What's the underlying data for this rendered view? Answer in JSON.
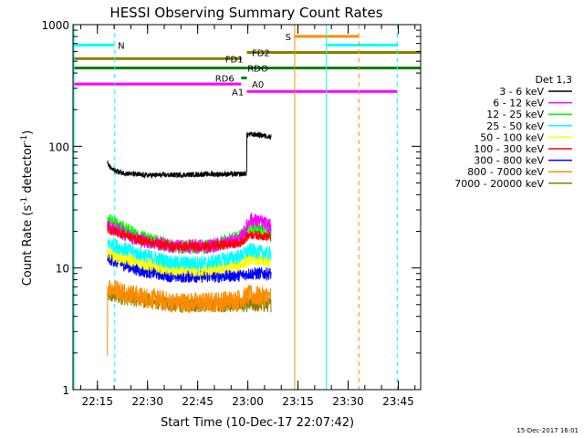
{
  "chart_data": {
    "type": "line",
    "title": "HESSI Observing Summary Count Rates",
    "xlabel": "Start Time (10-Dec-17 22:07:42)",
    "ylabel_main": "Count Rate (s",
    "ylabel_sup1": "-1",
    "ylabel_mid": " detector",
    "ylabel_sup2": "-1",
    "ylabel_end": ")",
    "x_unit": "minutes after 22:07:42",
    "xlim": [
      0,
      104
    ],
    "ylim": [
      1,
      1000
    ],
    "yscale": "log",
    "xticks": [
      {
        "label": "22:15",
        "value": 7.3
      },
      {
        "label": "22:30",
        "value": 22.3
      },
      {
        "label": "22:45",
        "value": 37.3
      },
      {
        "label": "23:00",
        "value": 52.3
      },
      {
        "label": "23:15",
        "value": 67.3
      },
      {
        "label": "23:30",
        "value": 82.3
      },
      {
        "label": "23:45",
        "value": 97.3
      }
    ],
    "yticks": [
      {
        "label": "1",
        "value": 1
      },
      {
        "label": "10",
        "value": 10
      },
      {
        "label": "100",
        "value": 100
      },
      {
        "label": "1000",
        "value": 1000
      }
    ],
    "legend": {
      "title": "Det 1,3",
      "placement": "right",
      "entries": [
        {
          "label": "3 - 6 keV",
          "color": "#000000"
        },
        {
          "label": "6 - 12 keV",
          "color": "#ff00ff"
        },
        {
          "label": "12 - 25 keV",
          "color": "#00ff00"
        },
        {
          "label": "25 - 50 keV",
          "color": "#00ffff"
        },
        {
          "label": "50 - 100 keV",
          "color": "#ffff00"
        },
        {
          "label": "100 - 300 keV",
          "color": "#ff0000"
        },
        {
          "label": "300 - 800 keV",
          "color": "#0000ff"
        },
        {
          "label": "800 - 7000 keV",
          "color": "#ff8c00"
        },
        {
          "label": "7000 - 20000 keV",
          "color": "#8b7d00"
        }
      ]
    },
    "series": [
      {
        "name": "3 - 6 keV",
        "color": "#000000",
        "start": 10.3,
        "end": 59.3,
        "levels": [
          [
            10.3,
            72
          ],
          [
            11.5,
            65
          ],
          [
            14,
            61
          ],
          [
            20,
            58
          ],
          [
            30,
            58
          ],
          [
            40,
            59
          ],
          [
            50,
            59
          ],
          [
            52,
            60
          ],
          [
            52.2,
            125
          ],
          [
            55,
            125
          ],
          [
            59,
            120
          ]
        ],
        "noise": 0.05
      },
      {
        "name": "6 - 12 keV",
        "color": "#ff00ff",
        "start": 10.3,
        "end": 59.3,
        "levels": [
          [
            10.3,
            22
          ],
          [
            20,
            17
          ],
          [
            30,
            15
          ],
          [
            40,
            15
          ],
          [
            50,
            17
          ],
          [
            53,
            25
          ],
          [
            56,
            24
          ],
          [
            59,
            22
          ]
        ],
        "noise": 0.14
      },
      {
        "name": "12 - 25 keV",
        "color": "#00ff00",
        "start": 10.3,
        "end": 59.3,
        "levels": [
          [
            10.3,
            25
          ],
          [
            20,
            18
          ],
          [
            30,
            15
          ],
          [
            40,
            15
          ],
          [
            50,
            18
          ],
          [
            53,
            22
          ],
          [
            56,
            21
          ],
          [
            59,
            20
          ]
        ],
        "noise": 0.14
      },
      {
        "name": "25 - 50 keV",
        "color": "#00ffff",
        "start": 10.3,
        "end": 59.3,
        "levels": [
          [
            10.3,
            16
          ],
          [
            20,
            13
          ],
          [
            30,
            11
          ],
          [
            40,
            11
          ],
          [
            50,
            12.5
          ],
          [
            53,
            14
          ],
          [
            56,
            13.5
          ],
          [
            59,
            13
          ]
        ],
        "noise": 0.14
      },
      {
        "name": "50 - 100 keV",
        "color": "#ffff00",
        "start": 10.3,
        "end": 59.3,
        "levels": [
          [
            10.3,
            13
          ],
          [
            20,
            11
          ],
          [
            30,
            9.5
          ],
          [
            40,
            9.5
          ],
          [
            50,
            10.5
          ],
          [
            53,
            12
          ],
          [
            56,
            11.5
          ],
          [
            59,
            11
          ]
        ],
        "noise": 0.12
      },
      {
        "name": "100 - 300 keV",
        "color": "#ff0000",
        "start": 10.3,
        "end": 59.3,
        "levels": [
          [
            10.3,
            21
          ],
          [
            20,
            17
          ],
          [
            30,
            15
          ],
          [
            40,
            15
          ],
          [
            50,
            16
          ],
          [
            53,
            19
          ],
          [
            56,
            18.5
          ],
          [
            59,
            18
          ]
        ],
        "noise": 0.09
      },
      {
        "name": "300 - 800 keV",
        "color": "#0000ff",
        "start": 10.3,
        "end": 59.3,
        "levels": [
          [
            10.3,
            12
          ],
          [
            20,
            9.5
          ],
          [
            30,
            8.5
          ],
          [
            40,
            8.5
          ],
          [
            50,
            8.7
          ],
          [
            53,
            9
          ],
          [
            56,
            9
          ],
          [
            59,
            9
          ]
        ],
        "noise": 0.12
      },
      {
        "name": "800 - 7000 keV",
        "color": "#ff8c00",
        "start": 10.3,
        "end": 59.3,
        "levels": [
          [
            10.3,
            7
          ],
          [
            20,
            5.8
          ],
          [
            30,
            5.2
          ],
          [
            40,
            5.2
          ],
          [
            50,
            5.5
          ],
          [
            53,
            6
          ],
          [
            56,
            5.8
          ],
          [
            59,
            5.8
          ]
        ],
        "noise": 0.2
      },
      {
        "name": "7000 - 20000 keV",
        "color": "#8b7d00",
        "start": 10.3,
        "end": 59.3,
        "levels": [
          [
            10.3,
            6
          ],
          [
            30,
            5
          ],
          [
            59,
            5
          ]
        ],
        "noise": 0.15
      }
    ],
    "vertical_lines": [
      {
        "x": 0.3,
        "color": "#00ffff",
        "dashed": false
      },
      {
        "x": 12.5,
        "color": "#00ffff",
        "dashed": true
      },
      {
        "x": 66.3,
        "color": "#ff8c00",
        "dashed": false
      },
      {
        "x": 75.8,
        "color": "#00ffff",
        "dashed": false
      },
      {
        "x": 85.5,
        "color": "#ff8c00",
        "dashed": true
      },
      {
        "x": 97.0,
        "color": "#00ffff",
        "dashed": true
      }
    ],
    "flag_bars": [
      {
        "label": "N",
        "color": "#00ffff",
        "y": 680,
        "segments": [
          [
            0,
            12.3
          ],
          [
            76,
            97.2
          ]
        ],
        "label_x": 13.4
      },
      {
        "label": "S",
        "color": "#ff8c00",
        "y": 800,
        "segments": [
          [
            66.3,
            85.5
          ]
        ],
        "label_x": 63.5
      },
      {
        "label": "FD1",
        "color": "#8b7d00",
        "y": 525,
        "segments": [
          [
            0,
            50.5
          ]
        ],
        "label_x": 45.5
      },
      {
        "label": "FD2",
        "color": "#8b7d00",
        "y": 590,
        "segments": [
          [
            52,
            104
          ]
        ],
        "label_x": 53.5
      },
      {
        "label": "RDO",
        "color": "#008000",
        "y": 440,
        "segments": [
          [
            0,
            104
          ]
        ],
        "label_x": 52.2
      },
      {
        "label": "RD6",
        "color": "#008000",
        "y": 365,
        "segments": [
          [
            50.3,
            52
          ]
        ],
        "label_x": 42.5
      },
      {
        "label": "A0",
        "color": "#ff00ff",
        "y": 325,
        "segments": [
          [
            0,
            50.3
          ]
        ],
        "label_x": 53.5
      },
      {
        "label": "A1",
        "color": "#ff00ff",
        "y": 282,
        "segments": [
          [
            52,
            97
          ]
        ],
        "label_x": 47.5
      }
    ]
  },
  "footer": {
    "timestamp": "15-Dec-2017 16:01"
  }
}
